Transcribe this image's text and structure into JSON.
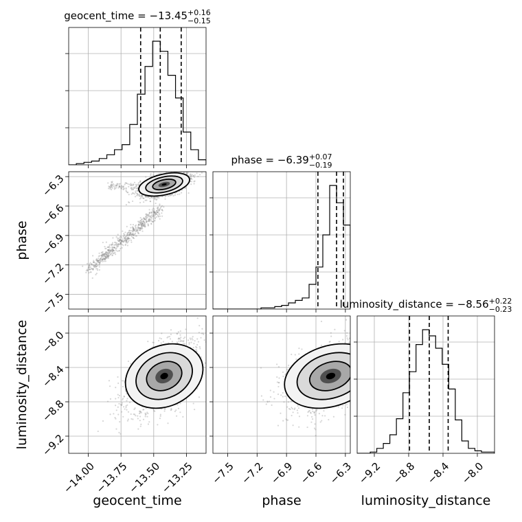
{
  "chart_data": {
    "type": "corner",
    "parameters": [
      "geocent_time",
      "phase",
      "luminosity_distance"
    ],
    "axis_labels": [
      "geocent_time",
      "phase",
      "luminosity_distance"
    ],
    "tick_labels": {
      "geocent_time": [
        "−14.00",
        "−13.75",
        "−13.50",
        "−13.25"
      ],
      "phase": [
        "−7.5",
        "−7.2",
        "−6.9",
        "−6.6",
        "−6.3"
      ],
      "luminosity_distance": [
        "−9.2",
        "−8.8",
        "−8.4",
        "−8.0"
      ]
    },
    "ticks": {
      "geocent_time": [
        -14.0,
        -13.75,
        -13.5,
        -13.25
      ],
      "phase": [
        -7.5,
        -7.2,
        -6.9,
        -6.6,
        -6.3
      ],
      "luminosity_distance": [
        -9.2,
        -8.8,
        -8.4,
        -8.0
      ]
    },
    "ranges": {
      "geocent_time": [
        -14.15,
        -13.1
      ],
      "phase": [
        -7.65,
        -6.25
      ],
      "luminosity_distance": [
        -9.4,
        -7.8
      ]
    },
    "titles": [
      {
        "param": "geocent_time",
        "prefix": "geocent_time = −13.45",
        "plus": "+0.16",
        "minus": "−0.15",
        "median": -13.45,
        "q_low": -13.6,
        "q_high": -13.29
      },
      {
        "param": "phase",
        "prefix": "phase = −6.39",
        "plus": "+0.07",
        "minus": "−0.19",
        "median": -6.39,
        "q_low": -6.58,
        "q_high": -6.32
      },
      {
        "param": "luminosity_distance",
        "prefix": "luminosity_distance = −8.56",
        "plus": "+0.22",
        "minus": "−0.23",
        "median": -8.56,
        "q_low": -8.79,
        "q_high": -8.34
      }
    ],
    "histograms": {
      "geocent_time": [
        0,
        1,
        2,
        3,
        5,
        8,
        12,
        16,
        32,
        56,
        78,
        98,
        90,
        71,
        53,
        26,
        12,
        4
      ],
      "phase": [
        0,
        0,
        0,
        0,
        0,
        0,
        0,
        1,
        1,
        2,
        3,
        5,
        7,
        9,
        20,
        34,
        60,
        100,
        86,
        68
      ],
      "luminosity_distance": [
        0,
        0,
        1,
        4,
        8,
        15,
        28,
        49,
        66,
        88,
        100,
        95,
        85,
        72,
        52,
        27,
        10,
        4,
        2,
        1,
        1
      ]
    },
    "grid": true
  }
}
